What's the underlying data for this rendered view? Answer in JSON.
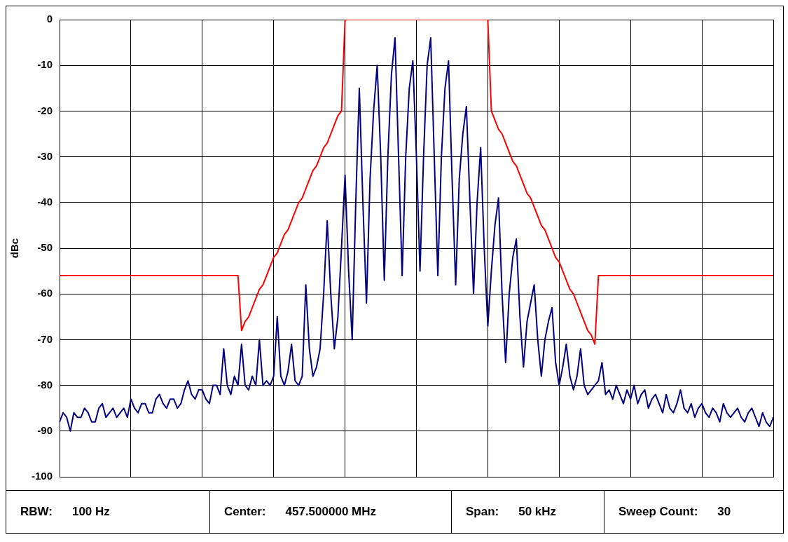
{
  "chart_data": {
    "type": "line",
    "ylabel": "dBc",
    "ylim": [
      -100,
      0
    ],
    "yticks": [
      0,
      -10,
      -20,
      -30,
      -40,
      -50,
      -60,
      -70,
      -80,
      -90,
      -100
    ],
    "tick_labels": "y",
    "grid": true,
    "legend": false,
    "marker": "none",
    "line_style": "solid",
    "categories": [
      null,
      null,
      null,
      null,
      null,
      null,
      null,
      null,
      null,
      null,
      null,
      null,
      null,
      null,
      null,
      null,
      null,
      null,
      null,
      null,
      null,
      null,
      null,
      null,
      null,
      null,
      null,
      null,
      null,
      null,
      null,
      null,
      null,
      null,
      null,
      null,
      null,
      null,
      null,
      null,
      null,
      null,
      null,
      null,
      null,
      null,
      null,
      null,
      null,
      null,
      null,
      null,
      null,
      null,
      null,
      null,
      null,
      null,
      null,
      null,
      null,
      null,
      null,
      null,
      null,
      null,
      null,
      null,
      null,
      null,
      null,
      null,
      null,
      null,
      null,
      null,
      null,
      null,
      null,
      null,
      null,
      null,
      null,
      null,
      null,
      null,
      null,
      null,
      null,
      null,
      null,
      null,
      null,
      null,
      null,
      null,
      null,
      null,
      null,
      null,
      null,
      null,
      null,
      null,
      null,
      null,
      null,
      null,
      null,
      null,
      null,
      null,
      null,
      null,
      null,
      null,
      null,
      null,
      null,
      null,
      null,
      null,
      null,
      null,
      null,
      null,
      null,
      null,
      null,
      null,
      null,
      null,
      null,
      null,
      null,
      null,
      null,
      null,
      null,
      null,
      null,
      null,
      null,
      null,
      null,
      null,
      null,
      null,
      null,
      null,
      null,
      null,
      null,
      null,
      null,
      null,
      null,
      null,
      null,
      null,
      null,
      null,
      null,
      null,
      null,
      null,
      null,
      null,
      null,
      null,
      null,
      null,
      null,
      null,
      null,
      null,
      null,
      null,
      null,
      null,
      null,
      null,
      null,
      null,
      null,
      null,
      null,
      null,
      null,
      null,
      null,
      null,
      null,
      null,
      null,
      null,
      null,
      null,
      null,
      null,
      null
    ],
    "series": [
      {
        "color": "#000080",
        "values": [
          -88,
          -86,
          -87,
          -90,
          -86,
          -87,
          -87,
          -85,
          -86,
          -88,
          -88,
          -85,
          -84,
          -87,
          -86,
          -85,
          -87,
          -86,
          -85,
          -87,
          -83,
          -85,
          -86,
          -84,
          -84,
          -86,
          -86,
          -83,
          -82,
          -84,
          -85,
          -83,
          -83,
          -85,
          -84,
          -81,
          -79,
          -82,
          -83,
          -81,
          -81,
          -83,
          -84,
          -80,
          -80,
          -82,
          -72,
          -80,
          -82,
          -78,
          -80,
          -71,
          -80,
          -81,
          -78,
          -80,
          -70,
          -80,
          -79,
          -80,
          -78,
          -65,
          -78,
          -80,
          -77,
          -71,
          -79,
          -80,
          -78,
          -58,
          -72,
          -78,
          -76,
          -72,
          -60,
          -44,
          -60,
          -72,
          -65,
          -50,
          -34,
          -55,
          -70,
          -40,
          -15,
          -40,
          -62,
          -35,
          -20,
          -10,
          -30,
          -57,
          -30,
          -12,
          -4,
          -30,
          -56,
          -30,
          -15,
          -9,
          -30,
          -55,
          -30,
          -10,
          -4,
          -30,
          -56,
          -30,
          -15,
          -9,
          -35,
          -58,
          -35,
          -25,
          -19,
          -40,
          -60,
          -40,
          -28,
          -50,
          -67,
          -55,
          -45,
          -39,
          -60,
          -75,
          -60,
          -52,
          -48,
          -65,
          -76,
          -66,
          -62,
          -58,
          -70,
          -78,
          -70,
          -66,
          -63,
          -75,
          -80,
          -76,
          -71,
          -78,
          -81,
          -78,
          -72,
          -80,
          -82,
          -81,
          -80,
          -79,
          -75,
          -82,
          -81,
          -83,
          -80,
          -82,
          -84,
          -81,
          -83,
          -80,
          -84,
          -82,
          -81,
          -85,
          -83,
          -82,
          -84,
          -86,
          -82,
          -85,
          -86,
          -84,
          -81,
          -85,
          -86,
          -84,
          -87,
          -85,
          -84,
          -86,
          -87,
          -85,
          -86,
          -88,
          -84,
          -86,
          -87,
          -86,
          -85,
          -87,
          -88,
          -86,
          -85,
          -87,
          -89,
          -86,
          -88,
          -89,
          -87
        ]
      },
      {
        "color": "#ff0000",
        "values": [
          -56,
          -56,
          -56,
          -56,
          -56,
          -56,
          -56,
          -56,
          -56,
          -56,
          -56,
          -56,
          -56,
          -56,
          -56,
          -56,
          -56,
          -56,
          -56,
          -56,
          -56,
          -56,
          -56,
          -56,
          -56,
          -56,
          -56,
          -56,
          -56,
          -56,
          -56,
          -56,
          -56,
          -56,
          -56,
          -56,
          -56,
          -56,
          -56,
          -56,
          -56,
          -56,
          -56,
          -56,
          -56,
          -56,
          -56,
          -56,
          -56,
          -56,
          -56,
          -68,
          -66,
          -65,
          -63,
          -61,
          -59,
          -58,
          -56,
          -54,
          -52,
          -51,
          -49,
          -47,
          -46,
          -44,
          -42,
          -40,
          -39,
          -37,
          -35,
          -33,
          -32,
          -30,
          -28,
          -27,
          -25,
          -23,
          -21,
          -20,
          0,
          0,
          0,
          0,
          0,
          0,
          0,
          0,
          0,
          0,
          0,
          0,
          0,
          0,
          0,
          0,
          0,
          0,
          0,
          0,
          0,
          0,
          0,
          0,
          0,
          0,
          0,
          0,
          0,
          0,
          0,
          0,
          0,
          0,
          0,
          0,
          0,
          0,
          0,
          0,
          0,
          -20,
          -22,
          -24,
          -25,
          -27,
          -29,
          -31,
          -32,
          -34,
          -36,
          -38,
          -39,
          -41,
          -43,
          -45,
          -46,
          -48,
          -50,
          -52,
          -53,
          -55,
          -57,
          -59,
          -60,
          -62,
          -64,
          -66,
          -68,
          -69,
          -71,
          -56,
          -56,
          -56,
          -56,
          -56,
          -56,
          -56,
          -56,
          -56,
          -56,
          -56,
          -56,
          -56,
          -56,
          -56,
          -56,
          -56,
          -56,
          -56,
          -56,
          -56,
          -56,
          -56,
          -56,
          -56,
          -56,
          -56,
          -56,
          -56,
          -56,
          -56,
          -56,
          -56,
          -56,
          -56,
          -56,
          -56,
          -56,
          -56,
          -56,
          -56,
          -56,
          -56,
          -56,
          -56,
          -56,
          -56,
          -56,
          -56,
          -56
        ]
      }
    ],
    "annotations": [
      "RBW:",
      "100 Hz",
      "Center:",
      "457.500000 MHz",
      "Span:",
      "50 kHz",
      "Sweep Count:",
      "30"
    ]
  }
}
